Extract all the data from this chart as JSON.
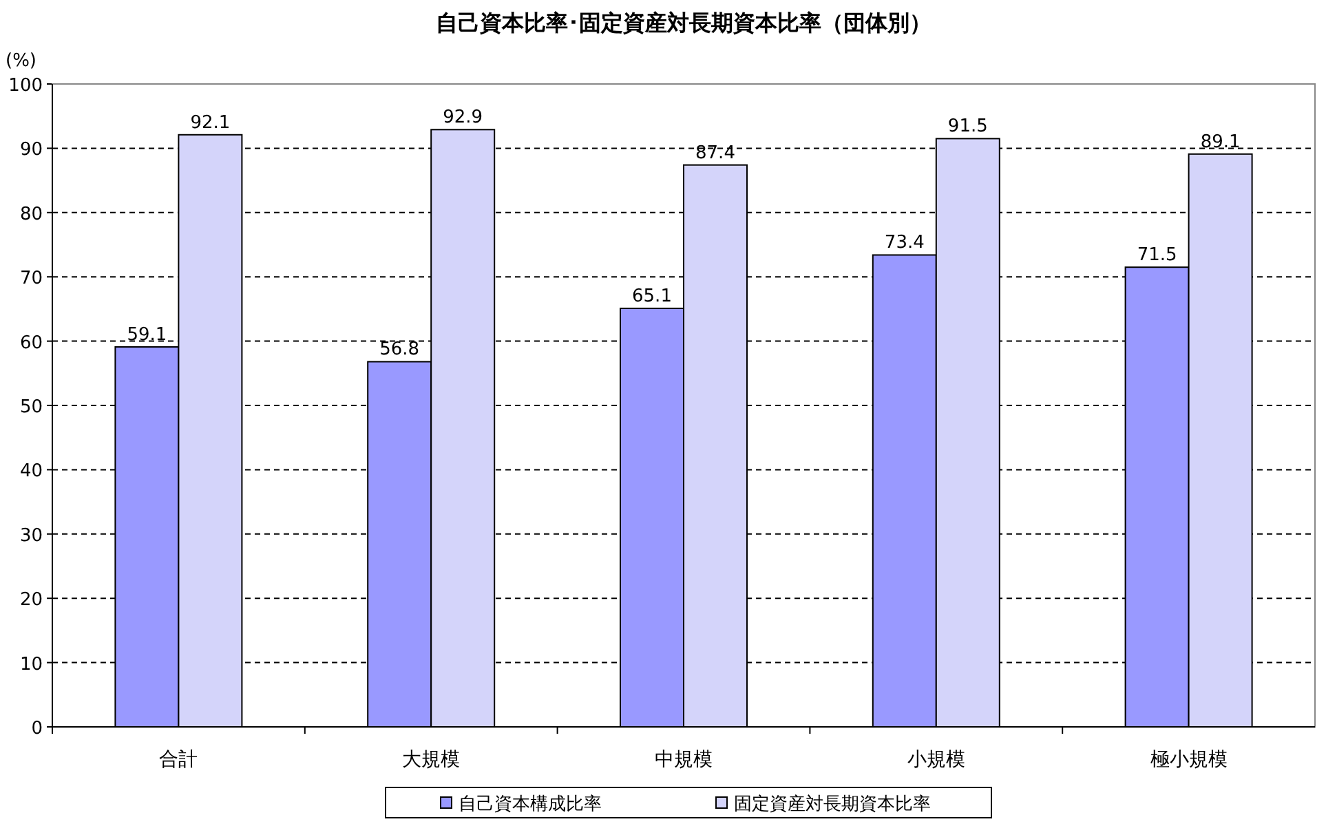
{
  "chart_data": {
    "type": "bar",
    "title": "自己資本比率･固定資産対長期資本比率（団体別）",
    "ylabel": "(%)",
    "categories": [
      "合計",
      "大規模",
      "中規模",
      "小規模",
      "極小規模"
    ],
    "series": [
      {
        "name": "自己資本構成比率",
        "color": "#9999ff",
        "values": [
          59.1,
          56.8,
          65.1,
          73.4,
          71.5
        ]
      },
      {
        "name": "固定資産対長期資本比率",
        "color": "#d4d4fa",
        "values": [
          92.1,
          92.9,
          87.4,
          91.5,
          89.1
        ]
      }
    ],
    "ylim": [
      0,
      100
    ],
    "yticks": [
      0,
      10,
      20,
      30,
      40,
      50,
      60,
      70,
      80,
      90,
      100
    ],
    "grid": "y",
    "legend": "bottom",
    "data_labels": true
  }
}
